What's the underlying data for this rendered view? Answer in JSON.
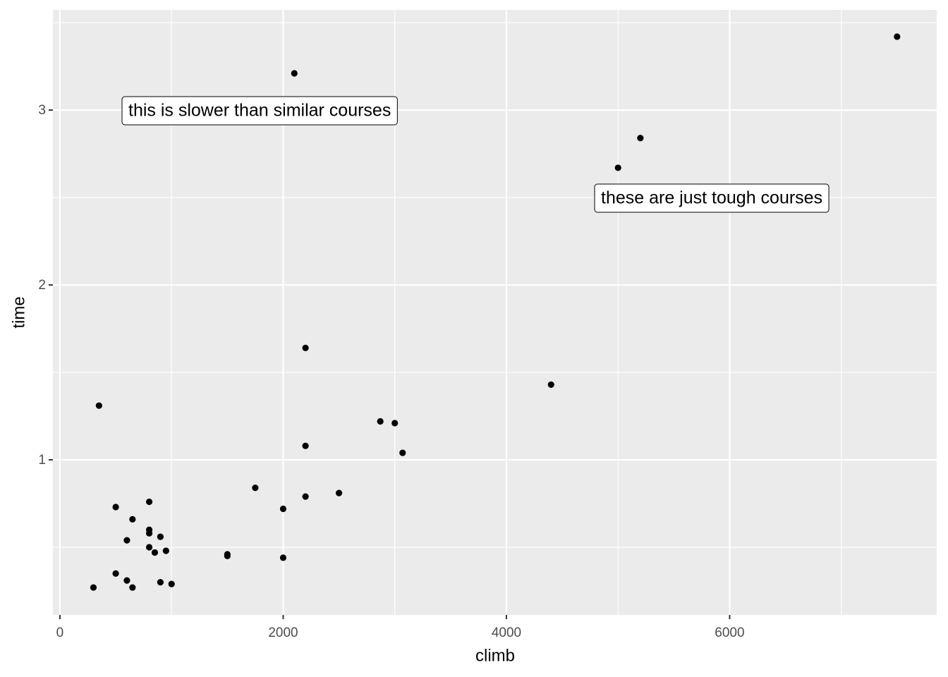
{
  "chart_data": {
    "type": "scatter",
    "x_label": "climb",
    "y_label": "time",
    "x": [
      7500,
      2100,
      5200,
      5000,
      2200,
      4400,
      350,
      2870,
      3000,
      2200,
      3070,
      1750,
      2500,
      2200,
      800,
      500,
      2000,
      650,
      800,
      800,
      900,
      600,
      800,
      950,
      850,
      1500,
      1500,
      2000,
      500,
      600,
      900,
      1000,
      300,
      650
    ],
    "values": [
      3.42,
      3.21,
      2.84,
      2.67,
      1.64,
      1.43,
      1.31,
      1.22,
      1.21,
      1.08,
      1.04,
      0.84,
      0.81,
      0.79,
      0.76,
      0.73,
      0.72,
      0.66,
      0.6,
      0.58,
      0.56,
      0.54,
      0.5,
      0.48,
      0.47,
      0.46,
      0.45,
      0.44,
      0.35,
      0.31,
      0.3,
      0.29,
      0.27,
      0.27
    ],
    "color": "#000000",
    "xlim": [
      -63,
      7855
    ],
    "ylim": [
      0.113,
      3.573
    ],
    "xticks": [
      0,
      2000,
      4000,
      6000
    ],
    "yticks": [
      1,
      2,
      3
    ],
    "x_minor_grid": [
      1000,
      3000,
      5000,
      7000
    ],
    "y_minor_grid": [
      0.5,
      1.5,
      2.5,
      3.5
    ],
    "grid": true,
    "annotations": [
      "this is slower than similar courses",
      "these are just tough courses"
    ]
  }
}
